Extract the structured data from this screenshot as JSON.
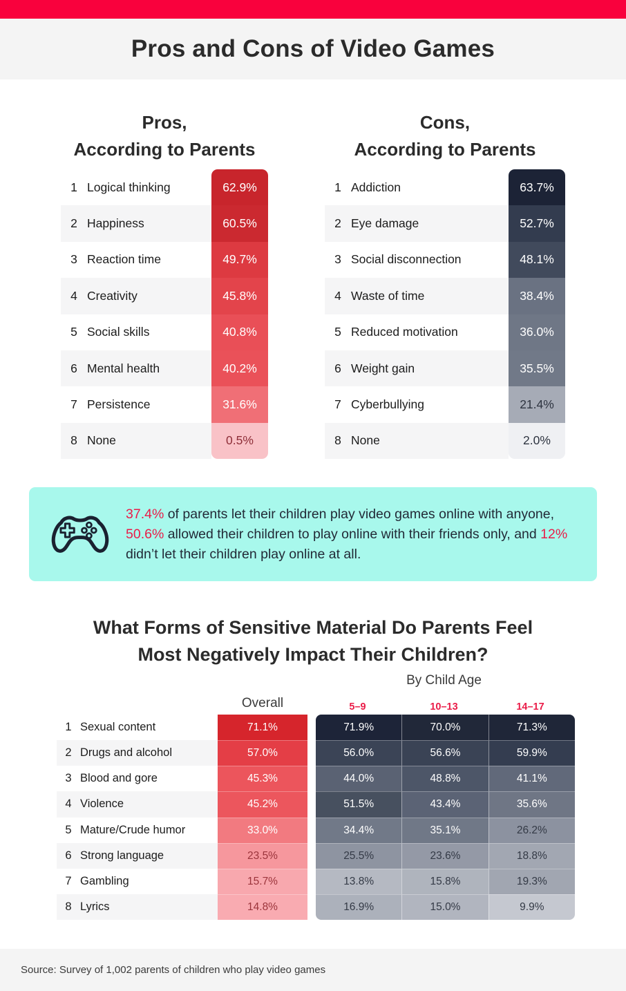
{
  "colors": {
    "topbar_red": "#F9013D",
    "accent_red": "#EA1C48",
    "callout_bg": "#A8F8EC",
    "icon_navy": "#1A2130",
    "band_gray": "#F4F4F4",
    "heading_text": "#2B2B2B"
  },
  "header": {
    "title": "Pros and Cons of Video Games"
  },
  "pros_table": {
    "heading_line1": "Pros,",
    "heading_line2": "According to Parents",
    "rows": [
      {
        "rank": "1",
        "label": "Logical thinking",
        "value": "62.9%",
        "bg": "#C8252C",
        "fg": "#FFFFFF"
      },
      {
        "rank": "2",
        "label": "Happiness",
        "value": "60.5%",
        "bg": "#CB2930",
        "fg": "#FFFFFF"
      },
      {
        "rank": "3",
        "label": "Reaction time",
        "value": "49.7%",
        "bg": "#DD3A41",
        "fg": "#FFFFFF"
      },
      {
        "rank": "4",
        "label": "Creativity",
        "value": "45.8%",
        "bg": "#E3444B",
        "fg": "#FFFFFF"
      },
      {
        "rank": "5",
        "label": "Social skills",
        "value": "40.8%",
        "bg": "#E94F57",
        "fg": "#FFFFFF"
      },
      {
        "rank": "6",
        "label": "Mental health",
        "value": "40.2%",
        "bg": "#EA5159",
        "fg": "#FFFFFF"
      },
      {
        "rank": "7",
        "label": "Persistence",
        "value": "31.6%",
        "bg": "#F06F76",
        "fg": "#FFFFFF"
      },
      {
        "rank": "8",
        "label": "None",
        "value": "0.5%",
        "bg": "#F9C2C7",
        "fg": "#8E2E38"
      }
    ]
  },
  "cons_table": {
    "heading_line1": "Cons,",
    "heading_line2": "According to Parents",
    "rows": [
      {
        "rank": "1",
        "label": "Addiction",
        "value": "63.7%",
        "bg": "#1C2336",
        "fg": "#FFFFFF"
      },
      {
        "rank": "2",
        "label": "Eye damage",
        "value": "52.7%",
        "bg": "#333C4F",
        "fg": "#FFFFFF"
      },
      {
        "rank": "3",
        "label": "Social disconnection",
        "value": "48.1%",
        "bg": "#414A5C",
        "fg": "#FFFFFF"
      },
      {
        "rank": "4",
        "label": "Waste of time",
        "value": "38.4%",
        "bg": "#6A7282",
        "fg": "#FFFFFF"
      },
      {
        "rank": "5",
        "label": "Reduced motivation",
        "value": "36.0%",
        "bg": "#6F7786",
        "fg": "#FFFFFF"
      },
      {
        "rank": "6",
        "label": "Weight gain",
        "value": "35.5%",
        "bg": "#717988",
        "fg": "#FFFFFF"
      },
      {
        "rank": "7",
        "label": "Cyberbullying",
        "value": "21.4%",
        "bg": "#A6ABB6",
        "fg": "#2E3440"
      },
      {
        "rank": "8",
        "label": "None",
        "value": "2.0%",
        "bg": "#EFF0F3",
        "fg": "#2E3440"
      }
    ]
  },
  "callout": {
    "segments": [
      {
        "text": "37.4%",
        "accent": true
      },
      {
        "text": " of parents let their children play video games online with anyone, ",
        "accent": false
      },
      {
        "text": "50.6%",
        "accent": true
      },
      {
        "text": " allowed their children to play online with their friends only, and ",
        "accent": false
      },
      {
        "text": "12%",
        "accent": true
      },
      {
        "text": " didn’t let their children play online at all.",
        "accent": false
      }
    ]
  },
  "section2": {
    "title_line1": "What Forms of Sensitive Material Do Parents Feel",
    "title_line2": "Most Negatively Impact Their Children?",
    "overall_label": "Overall",
    "group_label": "By Child Age",
    "age_labels": [
      "5–9",
      "10–13",
      "14–17"
    ],
    "rows": [
      {
        "rank": "1",
        "label": "Sexual content",
        "overall": {
          "v": "71.1%",
          "bg": "#D6252C",
          "fg": "#FFFFFF"
        },
        "ages": [
          {
            "v": "71.9%",
            "bg": "#1D2438",
            "fg": "#FFFFFF"
          },
          {
            "v": "70.0%",
            "bg": "#212839",
            "fg": "#FFFFFF"
          },
          {
            "v": "71.3%",
            "bg": "#1F2638",
            "fg": "#FFFFFF"
          }
        ]
      },
      {
        "rank": "2",
        "label": "Drugs and alcohol",
        "overall": {
          "v": "57.0%",
          "bg": "#E43E46",
          "fg": "#FFFFFF"
        },
        "ages": [
          {
            "v": "56.0%",
            "bg": "#3B4456",
            "fg": "#FFFFFF"
          },
          {
            "v": "56.6%",
            "bg": "#3A4355",
            "fg": "#FFFFFF"
          },
          {
            "v": "59.9%",
            "bg": "#343D50",
            "fg": "#FFFFFF"
          }
        ]
      },
      {
        "rank": "3",
        "label": "Blood and gore",
        "overall": {
          "v": "45.3%",
          "bg": "#EC555C",
          "fg": "#FFFFFF"
        },
        "ages": [
          {
            "v": "44.0%",
            "bg": "#5A6273",
            "fg": "#FFFFFF"
          },
          {
            "v": "48.8%",
            "bg": "#4D5668",
            "fg": "#FFFFFF"
          },
          {
            "v": "41.1%",
            "bg": "#61697A",
            "fg": "#FFFFFF"
          }
        ]
      },
      {
        "rank": "4",
        "label": "Violence",
        "overall": {
          "v": "45.2%",
          "bg": "#EC565D",
          "fg": "#FFFFFF"
        },
        "ages": [
          {
            "v": "51.5%",
            "bg": "#47505F",
            "fg": "#FFFFFF"
          },
          {
            "v": "43.4%",
            "bg": "#5B6375",
            "fg": "#FFFFFF"
          },
          {
            "v": "35.6%",
            "bg": "#6F7685",
            "fg": "#FFFFFF"
          }
        ]
      },
      {
        "rank": "5",
        "label": "Mature/Crude humor",
        "overall": {
          "v": "33.0%",
          "bg": "#F27A80",
          "fg": "#FFFFFF"
        },
        "ages": [
          {
            "v": "34.4%",
            "bg": "#717988",
            "fg": "#FFFFFF"
          },
          {
            "v": "35.1%",
            "bg": "#707887",
            "fg": "#FFFFFF"
          },
          {
            "v": "26.2%",
            "bg": "#8C92A0",
            "fg": "#343A46"
          }
        ]
      },
      {
        "rank": "6",
        "label": "Strong language",
        "overall": {
          "v": "23.5%",
          "bg": "#F6979D",
          "fg": "#9B343B"
        },
        "ages": [
          {
            "v": "25.5%",
            "bg": "#8E94A1",
            "fg": "#343A46"
          },
          {
            "v": "23.6%",
            "bg": "#9499A6",
            "fg": "#343A46"
          },
          {
            "v": "18.8%",
            "bg": "#A2A7B2",
            "fg": "#343A46"
          }
        ]
      },
      {
        "rank": "7",
        "label": "Gambling",
        "overall": {
          "v": "15.7%",
          "bg": "#F8A8AE",
          "fg": "#9B343B"
        },
        "ages": [
          {
            "v": "13.8%",
            "bg": "#B5B9C2",
            "fg": "#343A46"
          },
          {
            "v": "15.8%",
            "bg": "#AFB4BD",
            "fg": "#343A46"
          },
          {
            "v": "19.3%",
            "bg": "#A1A6B1",
            "fg": "#343A46"
          }
        ]
      },
      {
        "rank": "8",
        "label": "Lyrics",
        "overall": {
          "v": "14.8%",
          "bg": "#F9ABB1",
          "fg": "#9B343B"
        },
        "ages": [
          {
            "v": "16.9%",
            "bg": "#ACB1BB",
            "fg": "#343A46"
          },
          {
            "v": "15.0%",
            "bg": "#B1B5BF",
            "fg": "#343A46"
          },
          {
            "v": "9.9%",
            "bg": "#C5C8D0",
            "fg": "#343A46"
          }
        ]
      }
    ]
  },
  "footer": {
    "source": "Source: Survey of 1,002 parents of children who play video games"
  },
  "chart_data": [
    {
      "type": "bar",
      "title": "Pros, According to Parents",
      "categories": [
        "Logical thinking",
        "Happiness",
        "Reaction time",
        "Creativity",
        "Social skills",
        "Mental health",
        "Persistence",
        "None"
      ],
      "values": [
        62.9,
        60.5,
        49.7,
        45.8,
        40.8,
        40.2,
        31.6,
        0.5
      ],
      "unit": "%"
    },
    {
      "type": "bar",
      "title": "Cons, According to Parents",
      "categories": [
        "Addiction",
        "Eye damage",
        "Social disconnection",
        "Waste of time",
        "Reduced motivation",
        "Weight gain",
        "Cyberbullying",
        "None"
      ],
      "values": [
        63.7,
        52.7,
        48.1,
        38.4,
        36.0,
        35.5,
        21.4,
        2.0
      ],
      "unit": "%"
    },
    {
      "type": "heatmap",
      "title": "What Forms of Sensitive Material Do Parents Feel Most Negatively Impact Their Children?",
      "categories": [
        "Sexual content",
        "Drugs and alcohol",
        "Blood and gore",
        "Violence",
        "Mature/Crude humor",
        "Strong language",
        "Gambling",
        "Lyrics"
      ],
      "series": [
        {
          "name": "Overall",
          "values": [
            71.1,
            57.0,
            45.3,
            45.2,
            33.0,
            23.5,
            15.7,
            14.8
          ]
        },
        {
          "name": "5–9",
          "values": [
            71.9,
            56.0,
            44.0,
            51.5,
            34.4,
            25.5,
            13.8,
            16.9
          ]
        },
        {
          "name": "10–13",
          "values": [
            70.0,
            56.6,
            48.8,
            43.4,
            35.1,
            23.6,
            15.8,
            15.0
          ]
        },
        {
          "name": "14–17",
          "values": [
            71.3,
            59.9,
            41.1,
            35.6,
            26.2,
            18.8,
            19.3,
            9.9
          ]
        }
      ],
      "unit": "%",
      "stat_callout": {
        "online_with_anyone": 37.4,
        "online_friends_only": 50.6,
        "no_online_play": 12
      }
    }
  ]
}
